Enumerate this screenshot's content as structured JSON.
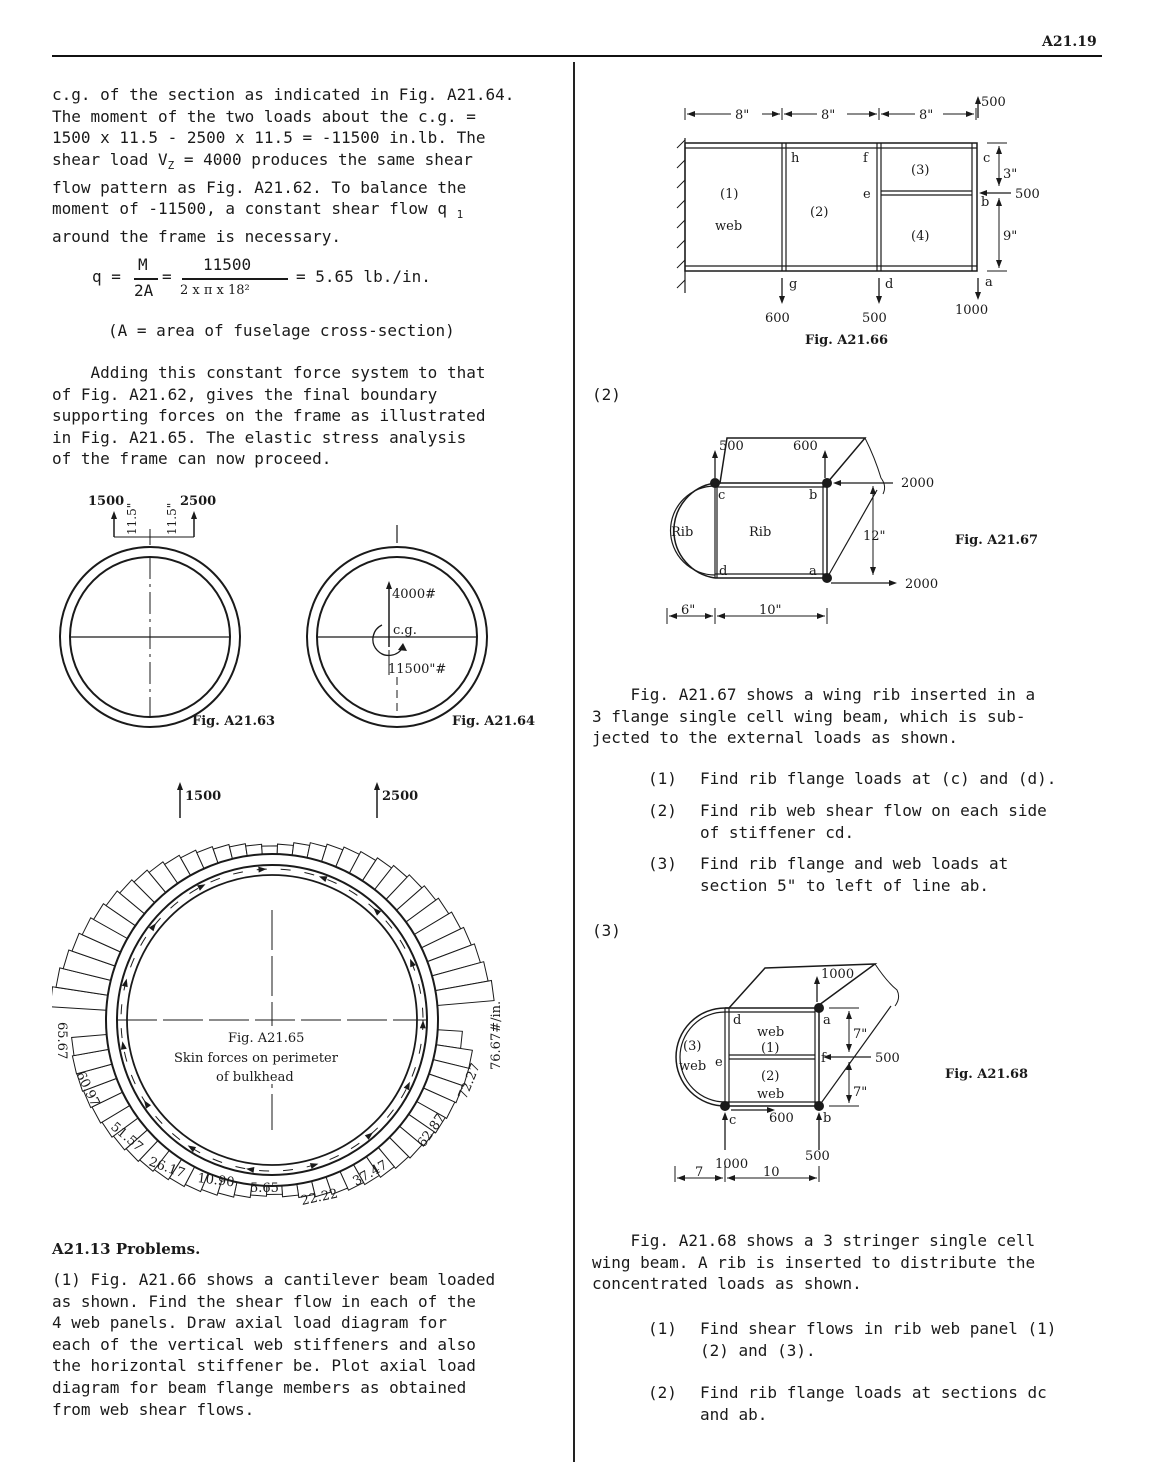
{
  "header": {
    "page_number": "A21.19"
  },
  "left": {
    "para1_lines": [
      "c.g. of the section as indicated in Fig. A21.64.",
      "The moment of the two loads about the c.g. =",
      "1500 x 11.5 - 2500 x 11.5 = -11500 in.lb.  The",
      "shear load V",
      "flow pattern as Fig. A21.62.  To balance the",
      "moment of -11500, a constant shear flow q",
      "around the frame is necessary."
    ],
    "vz_sub": "Z",
    "vz_rest": " = 4000 produces the same shear",
    "q_sub": "1",
    "equation": {
      "lhs": "q =",
      "frac1_num": "M",
      "frac1_den": "2A",
      "frac2_num": "11500",
      "frac2_den": "2 x π x 18²",
      "result": "= 5.65 lb./in."
    },
    "area_note": "(A = area of fuselage cross-section)",
    "para2_lines": [
      "    Adding this constant force system to that",
      "of Fig. A21.62, gives the final boundary",
      "supporting forces on the frame as illustrated",
      "in Fig. A21.65.  The elastic stress analysis",
      "of the frame can now proceed."
    ],
    "fig63": {
      "load_left": "1500",
      "load_right": "2500",
      "dim_left": "11.5\"",
      "dim_right": "11.5\"",
      "caption": "Fig. A21.63"
    },
    "fig64": {
      "shear": "4000#",
      "cg": "c.g.",
      "moment": "11500\"#",
      "caption": "Fig. A21.64"
    },
    "fig65": {
      "load_left": "1500",
      "load_right": "2500",
      "caption": "Fig. A21.65",
      "subcaption_1": "Skin forces on perimeter",
      "subcaption_2": "of bulkhead",
      "values": [
        "65.67",
        "60.97",
        "51.57",
        "26.17",
        "10.90",
        "5.65",
        "22.22",
        "37.47",
        "62.87",
        "72.27",
        "76.67#/in."
      ]
    },
    "problems_title": "A21.13 Problems.",
    "problem1_lines": [
      "(1)  Fig. A21.66 shows a cantilever beam loaded",
      "as shown.  Find the shear flow in each of the",
      "4 web panels.  Draw axial load diagram for",
      "each of the vertical web stiffeners and also",
      "the horizontal stiffener be.  Plot axial load",
      "diagram for beam flange members as obtained",
      "from web shear flows."
    ]
  },
  "right": {
    "fig66": {
      "dims_top": [
        "8\"",
        "8\"",
        "8\""
      ],
      "load_top": "500",
      "dim_3": "3\"",
      "dim_9": "9\"",
      "load_mid": "500",
      "panels": [
        "(1)",
        "(2)",
        "(3)",
        "(4)"
      ],
      "web_label": "web",
      "points": [
        "h",
        "f",
        "c",
        "e",
        "b",
        "g",
        "d",
        "a"
      ],
      "loads_bottom": [
        "600",
        "500",
        "1000"
      ],
      "caption": "Fig. A21.66"
    },
    "label_2": "(2)",
    "fig67": {
      "load_c": "500",
      "load_b": "600",
      "load_top_right": "2000",
      "load_bot_right": "2000",
      "dim_h": "12\"",
      "dim_6": "6\"",
      "dim_10": "10\"",
      "rib1": "Rib",
      "rib2": "Rib",
      "pts": [
        "c",
        "b",
        "d",
        "a"
      ],
      "caption": "Fig. A21.67"
    },
    "para67_lines": [
      "    Fig. A21.67 shows a wing rib inserted in a",
      "3 flange single cell wing beam, which is sub-",
      "jected to the external loads as shown."
    ],
    "list67": [
      {
        "num": "(1)",
        "text": "Find rib flange loads at (c) and (d)."
      },
      {
        "num": "(2)",
        "text": "Find rib web shear flow on each side\nof stiffener cd."
      },
      {
        "num": "(3)",
        "text": "Find rib flange and web loads at\nsection 5\" to left of line ab."
      }
    ],
    "label_3": "(3)",
    "fig68": {
      "load_top": "1000",
      "dim_7a": "7\"",
      "dim_7b": "7\"",
      "load_f": "500",
      "web1": "web",
      "web1n": "(1)",
      "web2n": "(2)",
      "web2": "web",
      "web3n": "(3)",
      "web3": "web",
      "pts": [
        "d",
        "a",
        "e",
        "f",
        "c",
        "b"
      ],
      "load_cb": "600",
      "loads_bottom": [
        "1000",
        "500"
      ],
      "dims_bottom": [
        "7",
        "10"
      ],
      "caption": "Fig. A21.68"
    },
    "para68_lines": [
      "    Fig. A21.68 shows a 3 stringer single cell",
      "wing beam.  A rib is inserted to distribute the",
      "concentrated loads as shown."
    ],
    "list68": [
      {
        "num": "(1)",
        "text": "Find shear flows in rib web panel (1)\n(2) and (3)."
      },
      {
        "num": "(2)",
        "text": "Find rib flange loads at sections dc\nand ab."
      }
    ]
  }
}
